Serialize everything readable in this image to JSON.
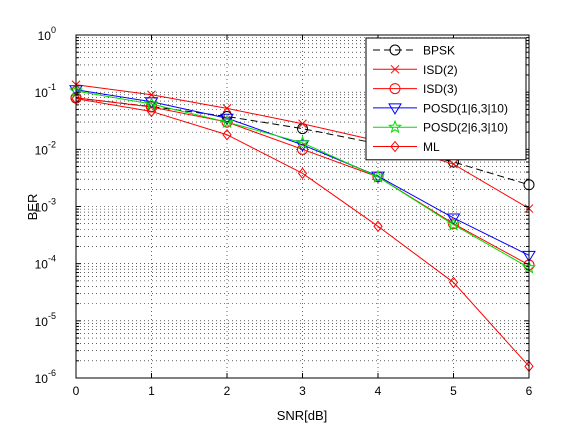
{
  "chart_data": {
    "type": "line",
    "xlabel": "SNR[dB]",
    "ylabel": "BER",
    "x": [
      0,
      1,
      2,
      3,
      4,
      5,
      6
    ],
    "xlim": [
      0,
      6
    ],
    "ylim": [
      1e-06,
      1
    ],
    "yscale": "log",
    "grid": true,
    "legend_position": "top-right",
    "x_tick_labels": [
      "0",
      "1",
      "2",
      "3",
      "4",
      "5",
      "6"
    ],
    "y_tick_labels": [
      {
        "base": "10",
        "exp": "0",
        "value": 1
      },
      {
        "base": "10",
        "exp": "-1",
        "value": 0.1
      },
      {
        "base": "10",
        "exp": "-2",
        "value": 0.01
      },
      {
        "base": "10",
        "exp": "-3",
        "value": 0.001
      },
      {
        "base": "10",
        "exp": "-4",
        "value": 0.0001
      },
      {
        "base": "10",
        "exp": "-5",
        "value": 1e-05
      },
      {
        "base": "10",
        "exp": "-6",
        "value": 1e-06
      }
    ],
    "series": [
      {
        "name": "BPSK",
        "color": "#000000",
        "marker": "circle",
        "dash": true,
        "values": [
          0.079,
          0.056,
          0.0375,
          0.023,
          0.0125,
          0.006,
          0.0024
        ]
      },
      {
        "name": "ISD(2)",
        "color": "#ff0000",
        "marker": "x",
        "dash": false,
        "values": [
          0.135,
          0.09,
          0.052,
          0.028,
          0.014,
          0.0055,
          0.00092
        ]
      },
      {
        "name": "ISD(3)",
        "color": "#ff0000",
        "marker": "circle",
        "dash": false,
        "values": [
          0.08,
          0.055,
          0.03,
          0.01,
          0.0033,
          0.0005,
          9.5e-05
        ]
      },
      {
        "name": "POSD(1|6,3|10)",
        "color": "#0000ff",
        "marker": "triangle-down",
        "dash": false,
        "values": [
          0.11,
          0.068,
          0.035,
          0.012,
          0.0034,
          0.00063,
          0.00014
        ]
      },
      {
        "name": "POSD(2|6,3|10)",
        "color": "#00dd00",
        "marker": "star",
        "dash": false,
        "values": [
          0.105,
          0.062,
          0.03,
          0.013,
          0.0033,
          0.00048,
          8.5e-05
        ]
      },
      {
        "name": "ML",
        "color": "#ff0000",
        "marker": "diamond",
        "dash": false,
        "values": [
          0.077,
          0.046,
          0.018,
          0.0038,
          0.00045,
          4.7e-05,
          1.6e-06
        ]
      }
    ]
  }
}
